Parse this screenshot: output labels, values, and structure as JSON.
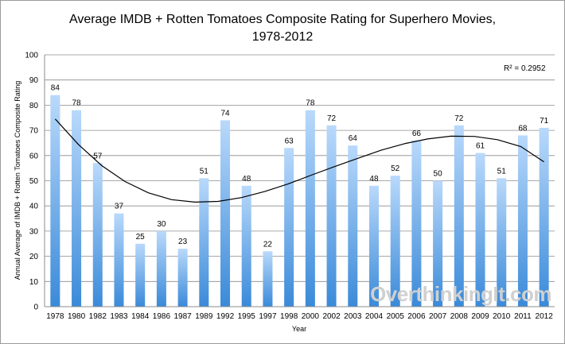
{
  "chart_data": {
    "type": "bar",
    "title_line1": "Average IMDB + Rotten Tomatoes Composite Rating for Superhero Movies,",
    "title_line2": "1978-2012",
    "xlabel": "Year",
    "ylabel": "Annual Average of IMDB + Rotten Tomatoes Composite Rating",
    "ylim": [
      0,
      100
    ],
    "yticks": [
      "0",
      "10",
      "20",
      "30",
      "40",
      "50",
      "60",
      "70",
      "80",
      "90",
      "100"
    ],
    "grid": true,
    "categories": [
      "1978",
      "1980",
      "1982",
      "1983",
      "1984",
      "1986",
      "1987",
      "1989",
      "1992",
      "1995",
      "1997",
      "1998",
      "2000",
      "2002",
      "2003",
      "2004",
      "2005",
      "2006",
      "2007",
      "2008",
      "2009",
      "2010",
      "2011",
      "2012"
    ],
    "values": [
      84,
      78,
      57,
      37,
      25,
      30,
      23,
      51,
      74,
      48,
      22,
      63,
      78,
      72,
      64,
      48,
      52,
      66,
      50,
      72,
      61,
      51,
      68,
      71
    ],
    "trendline": {
      "type": "polynomial-3",
      "r2_label": "R² = 0.2952",
      "values": [
        74.5,
        64.4,
        56.0,
        49.7,
        45.2,
        42.5,
        41.5,
        41.8,
        43.3,
        45.7,
        48.7,
        52.2,
        55.6,
        58.9,
        62.1,
        64.7,
        66.6,
        67.7,
        67.6,
        66.3,
        63.6,
        57.5
      ]
    },
    "watermark": "OverthinkingIt.com",
    "bar_color_top": "#b9d9fb",
    "bar_color_bottom": "#3a8ad9"
  }
}
